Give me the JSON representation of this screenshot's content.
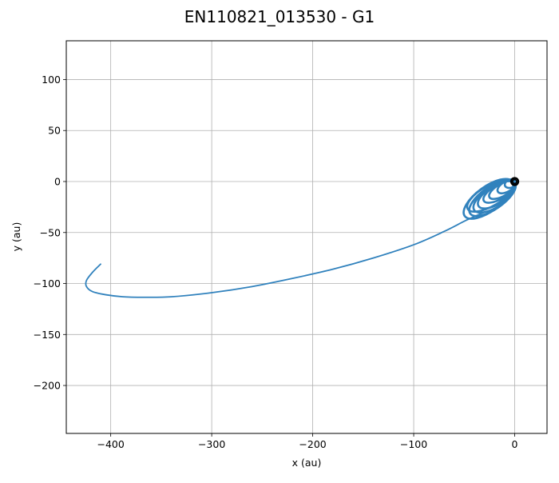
{
  "chart_data": {
    "type": "line",
    "title": "EN110821_013530 - G1",
    "xlabel": "x (au)",
    "ylabel": "y (au)",
    "xlim": [
      -444,
      32
    ],
    "ylim": [
      -247,
      138
    ],
    "xticks": [
      -400,
      -300,
      -200,
      -100,
      0
    ],
    "yticks": [
      100,
      50,
      0,
      -50,
      -100,
      -150,
      -200
    ],
    "xtick_labels": [
      "−400",
      "−300",
      "−200",
      "−100",
      "0"
    ],
    "ytick_labels": [
      "100",
      "50",
      "0",
      "−50",
      "−100",
      "−150",
      "−200"
    ],
    "grid": true,
    "legend": "none",
    "series": [
      {
        "color": "#3182bd",
        "trajectory": [
          [
            -410,
            -81
          ],
          [
            -418,
            -89
          ],
          [
            -424,
            -97
          ],
          [
            -424,
            -103
          ],
          [
            -418,
            -108
          ],
          [
            -405,
            -111
          ],
          [
            -388,
            -113
          ],
          [
            -368,
            -113.5
          ],
          [
            -340,
            -113
          ],
          [
            -300,
            -109
          ],
          [
            -260,
            -103
          ],
          [
            -220,
            -95
          ],
          [
            -180,
            -86
          ],
          [
            -140,
            -75
          ],
          [
            -100,
            -62
          ],
          [
            -70,
            -49
          ],
          [
            -48,
            -38
          ],
          [
            -30,
            -30
          ]
        ],
        "orbit_loops": [
          {
            "cx": -22,
            "cy": -16,
            "rx": 27,
            "ry": 11,
            "angle": 35
          },
          {
            "cx": -20,
            "cy": -15,
            "rx": 24,
            "ry": 10,
            "angle": 33
          },
          {
            "cx": -18,
            "cy": -13,
            "rx": 21,
            "ry": 9,
            "angle": 32
          },
          {
            "cx": -24,
            "cy": -14,
            "rx": 26,
            "ry": 10,
            "angle": 30
          },
          {
            "cx": -15,
            "cy": -10,
            "rx": 18,
            "ry": 7,
            "angle": 30
          },
          {
            "cx": -12,
            "cy": -8,
            "rx": 15,
            "ry": 6,
            "angle": 30
          },
          {
            "cx": -8,
            "cy": -5,
            "rx": 10,
            "ry": 5,
            "angle": 30
          },
          {
            "cx": -4,
            "cy": -2,
            "rx": 6,
            "ry": 4,
            "angle": 20
          },
          {
            "cx": -26,
            "cy": -17,
            "rx": 29,
            "ry": 12,
            "angle": 36
          }
        ]
      },
      {
        "color": "#000000",
        "central_orbit": {
          "cx": 0,
          "cy": 0,
          "rx": 3.5,
          "ry": 3.5
        }
      }
    ]
  }
}
